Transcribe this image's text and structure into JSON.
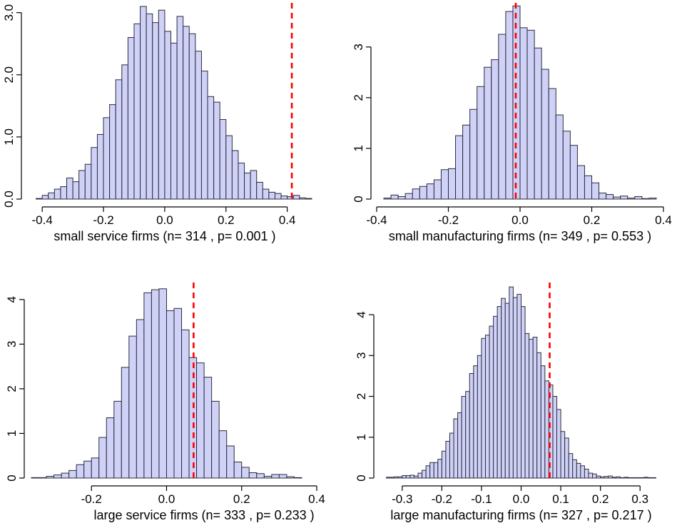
{
  "chart_data": [
    {
      "type": "histogram",
      "xlabel": "small service firms (n= 314 , p= 0.001 )",
      "ylabel": "",
      "xlim": [
        -0.44,
        0.48
      ],
      "ylim": [
        0,
        3.1
      ],
      "x_ticks": [
        -0.4,
        -0.2,
        0.0,
        0.2,
        0.4
      ],
      "x_tick_labels": [
        "-0.4",
        "-0.2",
        "0.0",
        "0.2",
        "0.4"
      ],
      "y_ticks": [
        0,
        1,
        2,
        3
      ],
      "y_tick_labels": [
        "0.0",
        "1.0",
        "2.0",
        "3.0"
      ],
      "bin_start": -0.42,
      "bin_width": 0.02,
      "values": [
        0.01,
        0.06,
        0.1,
        0.16,
        0.2,
        0.34,
        0.28,
        0.46,
        0.56,
        0.83,
        1.04,
        1.31,
        1.52,
        1.92,
        2.16,
        2.6,
        2.82,
        3.1,
        2.98,
        2.84,
        3.04,
        2.7,
        2.51,
        2.94,
        2.78,
        2.66,
        2.38,
        2.06,
        1.65,
        1.56,
        1.28,
        1.02,
        0.78,
        0.58,
        0.42,
        0.46,
        0.27,
        0.16,
        0.11,
        0.09,
        0.05,
        0.04,
        0.06,
        0.02,
        0.01
      ],
      "reference_x": 0.415,
      "reference_style": "red dashed vertical line",
      "bar_color": "#cfd1f7"
    },
    {
      "type": "histogram",
      "xlabel": "small manufacturing firms (n= 349 , p= 0.553 )",
      "ylabel": "",
      "xlim": [
        -0.4,
        0.4
      ],
      "ylim": [
        0,
        3.8
      ],
      "x_ticks": [
        -0.4,
        -0.2,
        0.0,
        0.2,
        0.4
      ],
      "x_tick_labels": [
        "-0.4",
        "-0.2",
        "0.0",
        "0.2",
        "0.4"
      ],
      "y_ticks": [
        0,
        1,
        2,
        3
      ],
      "y_tick_labels": [
        "0",
        "1",
        "2",
        "3"
      ],
      "bin_start": -0.38,
      "bin_width": 0.02,
      "values": [
        0.02,
        0.08,
        0.05,
        0.11,
        0.2,
        0.25,
        0.3,
        0.38,
        0.58,
        0.6,
        1.25,
        1.46,
        1.77,
        2.22,
        2.6,
        2.75,
        3.25,
        3.7,
        3.81,
        3.38,
        3.33,
        2.98,
        2.56,
        2.18,
        1.66,
        1.34,
        1.06,
        0.66,
        0.46,
        0.32,
        0.12,
        0.09,
        0.04,
        0.06,
        0.02,
        0.05,
        0.01,
        0.02
      ],
      "reference_x": -0.012,
      "reference_style": "red dashed vertical line",
      "bar_color": "#cfd1f7"
    },
    {
      "type": "histogram",
      "xlabel": "large service firms (n= 333 , p= 0.233 )",
      "ylabel": "",
      "xlim": [
        -0.36,
        0.4
      ],
      "ylim": [
        0,
        4.3
      ],
      "x_ticks": [
        -0.2,
        0.0,
        0.2,
        0.4
      ],
      "x_tick_labels": [
        "-0.2",
        "0.0",
        "0.2",
        "0.4"
      ],
      "y_ticks": [
        0,
        1,
        2,
        3,
        4
      ],
      "y_tick_labels": [
        "0",
        "1",
        "2",
        "3",
        "4"
      ],
      "bin_start": -0.36,
      "bin_width": 0.02,
      "values": [
        0.01,
        0.01,
        0.04,
        0.07,
        0.11,
        0.17,
        0.3,
        0.38,
        0.45,
        0.91,
        1.35,
        1.72,
        2.48,
        3.18,
        3.55,
        4.15,
        4.22,
        4.24,
        3.75,
        3.8,
        3.32,
        2.7,
        2.58,
        2.26,
        1.72,
        1.06,
        0.72,
        0.36,
        0.24,
        0.12,
        0.1,
        0.04,
        0.08,
        0.08,
        0.03,
        0.01
      ],
      "reference_x": 0.072,
      "reference_style": "red dashed vertical line",
      "bar_color": "#cfd1f7"
    },
    {
      "type": "histogram",
      "xlabel": "large manufacturing firms (n= 327 , p= 0.217 )",
      "ylabel": "",
      "xlim": [
        -0.35,
        0.35
      ],
      "ylim": [
        0,
        4.7
      ],
      "x_ticks": [
        -0.3,
        -0.2,
        -0.1,
        0.0,
        0.1,
        0.2,
        0.3
      ],
      "x_tick_labels": [
        "-0.3",
        "-0.2",
        "-0.1",
        "0.0",
        "0.1",
        "0.2",
        "0.3"
      ],
      "y_ticks": [
        0,
        1,
        2,
        3,
        4
      ],
      "y_tick_labels": [
        "0",
        "1",
        "2",
        "3",
        "4"
      ],
      "bin_start": -0.34,
      "bin_width": 0.01,
      "values": [
        0.02,
        0.02,
        0.03,
        0.03,
        0.06,
        0.06,
        0.07,
        0.05,
        0.12,
        0.19,
        0.3,
        0.38,
        0.38,
        0.46,
        0.66,
        0.9,
        1.1,
        1.45,
        1.6,
        2.0,
        2.12,
        2.56,
        2.75,
        3.0,
        3.42,
        3.5,
        3.72,
        3.96,
        4.2,
        4.4,
        4.28,
        4.68,
        4.42,
        4.5,
        4.2,
        3.54,
        3.4,
        3.45,
        3.07,
        2.75,
        2.38,
        2.28,
        2.0,
        1.68,
        1.14,
        0.98,
        0.6,
        0.45,
        0.36,
        0.3,
        0.22,
        0.12,
        0.1,
        0.05,
        0.03,
        0.04,
        0.05,
        0.02,
        0.03,
        0.01,
        0.02,
        0.01,
        0.01,
        0.01,
        0.01,
        0.02,
        0.01,
        0.01
      ],
      "reference_x": 0.072,
      "reference_style": "red dashed vertical line",
      "bar_color": "#cfd1f7"
    }
  ]
}
